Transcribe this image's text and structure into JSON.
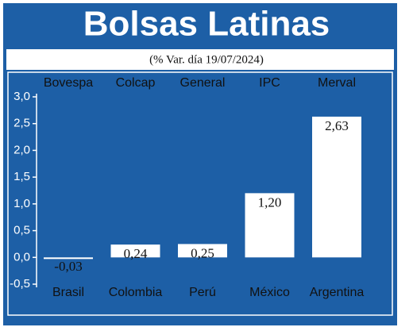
{
  "chart_data": {
    "type": "bar",
    "title": "Bolsas Latinas",
    "subtitle": "(% Var. día 19/07/2024)",
    "categories": [
      "Brasil",
      "Colombia",
      "Perú",
      "México",
      "Argentina"
    ],
    "index_names": [
      "Bovespa",
      "Colcap",
      "General",
      "IPC",
      "Merval"
    ],
    "values": [
      -0.03,
      0.24,
      0.25,
      1.2,
      2.63
    ],
    "value_labels": [
      "-0,03",
      "0,24",
      "0,25",
      "1,20",
      "2,63"
    ],
    "color": "#ffffff",
    "ylim": [
      -0.5,
      3.0
    ],
    "yticks": [
      {
        "value": -0.5,
        "label": "-0,5"
      },
      {
        "value": 0.0,
        "label": "0,0"
      },
      {
        "value": 0.5,
        "label": "0,5"
      },
      {
        "value": 1.0,
        "label": "1,0"
      },
      {
        "value": 1.5,
        "label": "1,5"
      },
      {
        "value": 2.0,
        "label": "2,0"
      },
      {
        "value": 2.5,
        "label": "2,5"
      },
      {
        "value": 3.0,
        "label": "3,0"
      }
    ]
  }
}
